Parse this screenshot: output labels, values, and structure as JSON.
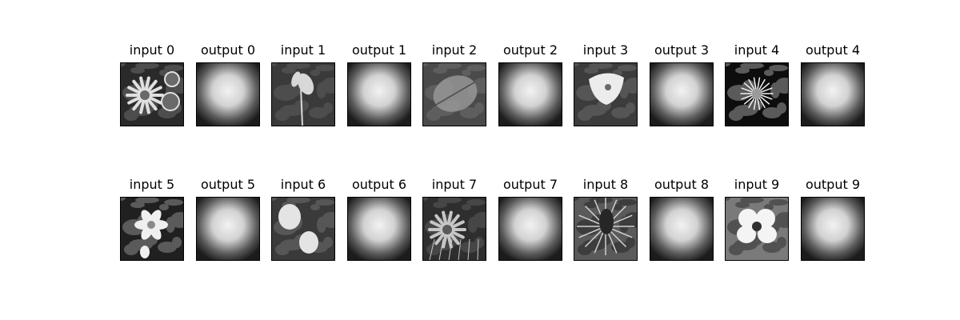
{
  "figure": {
    "background": "#ffffff",
    "rows": [
      {
        "panels": [
          {
            "title": "input 0",
            "kind": "input",
            "depiction": "flower-radial",
            "tones": [
              "#2a2a2a",
              "#e0e0e0",
              "#6a6a6a"
            ]
          },
          {
            "title": "output 0",
            "kind": "output",
            "depiction": "blur-glow",
            "tones": [
              "#1c1c1c",
              "#f2f2f2"
            ]
          },
          {
            "title": "input 1",
            "kind": "input",
            "depiction": "flower-stalk",
            "tones": [
              "#3a3a3a",
              "#d8d8d8",
              "#5e5e5e"
            ]
          },
          {
            "title": "output 1",
            "kind": "output",
            "depiction": "blur-glow",
            "tones": [
              "#1c1c1c",
              "#f2f2f2"
            ]
          },
          {
            "title": "input 2",
            "kind": "input",
            "depiction": "leaf",
            "tones": [
              "#4a4a4a",
              "#9a9a9a",
              "#707070"
            ]
          },
          {
            "title": "output 2",
            "kind": "output",
            "depiction": "blur-glow",
            "tones": [
              "#1c1c1c",
              "#f2f2f2"
            ]
          },
          {
            "title": "input 3",
            "kind": "input",
            "depiction": "bell-flower",
            "tones": [
              "#3c3c3c",
              "#ececec",
              "#6a6a6a"
            ]
          },
          {
            "title": "output 3",
            "kind": "output",
            "depiction": "blur-glow",
            "tones": [
              "#1c1c1c",
              "#f2f2f2"
            ]
          },
          {
            "title": "input 4",
            "kind": "input",
            "depiction": "spiky-dark",
            "tones": [
              "#0d0d0d",
              "#f0f0f0",
              "#9a9a9a"
            ]
          },
          {
            "title": "output 4",
            "kind": "output",
            "depiction": "blur-glow",
            "tones": [
              "#1c1c1c",
              "#f2f2f2"
            ]
          }
        ]
      },
      {
        "panels": [
          {
            "title": "input 5",
            "kind": "input",
            "depiction": "lily",
            "tones": [
              "#202020",
              "#efefef",
              "#8a8a8a"
            ]
          },
          {
            "title": "output 5",
            "kind": "output",
            "depiction": "blur-glow",
            "tones": [
              "#1c1c1c",
              "#f2f2f2"
            ]
          },
          {
            "title": "input 6",
            "kind": "input",
            "depiction": "two-blooms",
            "tones": [
              "#3a3a3a",
              "#e4e4e4",
              "#6e6e6e"
            ]
          },
          {
            "title": "output 6",
            "kind": "output",
            "depiction": "blur-glow",
            "tones": [
              "#1c1c1c",
              "#f2f2f2"
            ]
          },
          {
            "title": "input 7",
            "kind": "input",
            "depiction": "daisy-grass",
            "tones": [
              "#2e2e2e",
              "#c6c6c6",
              "#5a5a5a"
            ]
          },
          {
            "title": "output 7",
            "kind": "output",
            "depiction": "blur-glow",
            "tones": [
              "#1c1c1c",
              "#f2f2f2"
            ]
          },
          {
            "title": "input 8",
            "kind": "input",
            "depiction": "thistle",
            "tones": [
              "#5a5a5a",
              "#d0d0d0",
              "#262626"
            ]
          },
          {
            "title": "output 8",
            "kind": "output",
            "depiction": "blur-glow",
            "tones": [
              "#1c1c1c",
              "#f2f2f2"
            ]
          },
          {
            "title": "input 9",
            "kind": "input",
            "depiction": "pansy",
            "tones": [
              "#7a7a7a",
              "#f4f4f4",
              "#303030"
            ]
          },
          {
            "title": "output 9",
            "kind": "output",
            "depiction": "blur-glow",
            "tones": [
              "#1c1c1c",
              "#f2f2f2"
            ]
          }
        ]
      }
    ]
  }
}
